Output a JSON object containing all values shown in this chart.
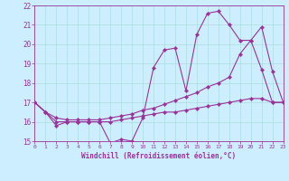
{
  "xlabel": "Windchill (Refroidissement éolien,°C)",
  "xlim": [
    0,
    23
  ],
  "ylim": [
    15,
    22
  ],
  "yticks": [
    15,
    16,
    17,
    18,
    19,
    20,
    21,
    22
  ],
  "xticks": [
    0,
    1,
    2,
    3,
    4,
    5,
    6,
    7,
    8,
    9,
    10,
    11,
    12,
    13,
    14,
    15,
    16,
    17,
    18,
    19,
    20,
    21,
    22,
    23
  ],
  "background_color": "#cceeff",
  "grid_color": "#aadddd",
  "line_color": "#993399",
  "line1_x": [
    0,
    1,
    2,
    3,
    4,
    5,
    6,
    7,
    8,
    9,
    10,
    11,
    12,
    13,
    14,
    15,
    16,
    17,
    18,
    19,
    20,
    21,
    22,
    23
  ],
  "line1_y": [
    17.0,
    16.5,
    15.8,
    16.0,
    16.0,
    16.0,
    16.0,
    14.9,
    15.1,
    15.0,
    16.2,
    18.8,
    19.7,
    19.8,
    17.6,
    20.5,
    21.6,
    21.7,
    21.0,
    20.2,
    20.2,
    18.7,
    17.0,
    17.0
  ],
  "line2_x": [
    0,
    1,
    2,
    3,
    4,
    5,
    6,
    7,
    8,
    9,
    10,
    11,
    12,
    13,
    14,
    15,
    16,
    17,
    18,
    19,
    20,
    21,
    22,
    23
  ],
  "line2_y": [
    17.0,
    16.5,
    16.2,
    16.1,
    16.1,
    16.1,
    16.1,
    16.2,
    16.3,
    16.4,
    16.6,
    16.7,
    16.9,
    17.1,
    17.3,
    17.5,
    17.8,
    18.0,
    18.3,
    19.5,
    20.2,
    20.9,
    18.6,
    17.0
  ],
  "line3_x": [
    0,
    1,
    2,
    3,
    4,
    5,
    6,
    7,
    8,
    9,
    10,
    11,
    12,
    13,
    14,
    15,
    16,
    17,
    18,
    19,
    20,
    21,
    22,
    23
  ],
  "line3_y": [
    17.0,
    16.5,
    16.0,
    16.0,
    16.0,
    16.0,
    16.0,
    16.0,
    16.1,
    16.2,
    16.3,
    16.4,
    16.5,
    16.5,
    16.6,
    16.7,
    16.8,
    16.9,
    17.0,
    17.1,
    17.2,
    17.2,
    17.0,
    17.0
  ]
}
